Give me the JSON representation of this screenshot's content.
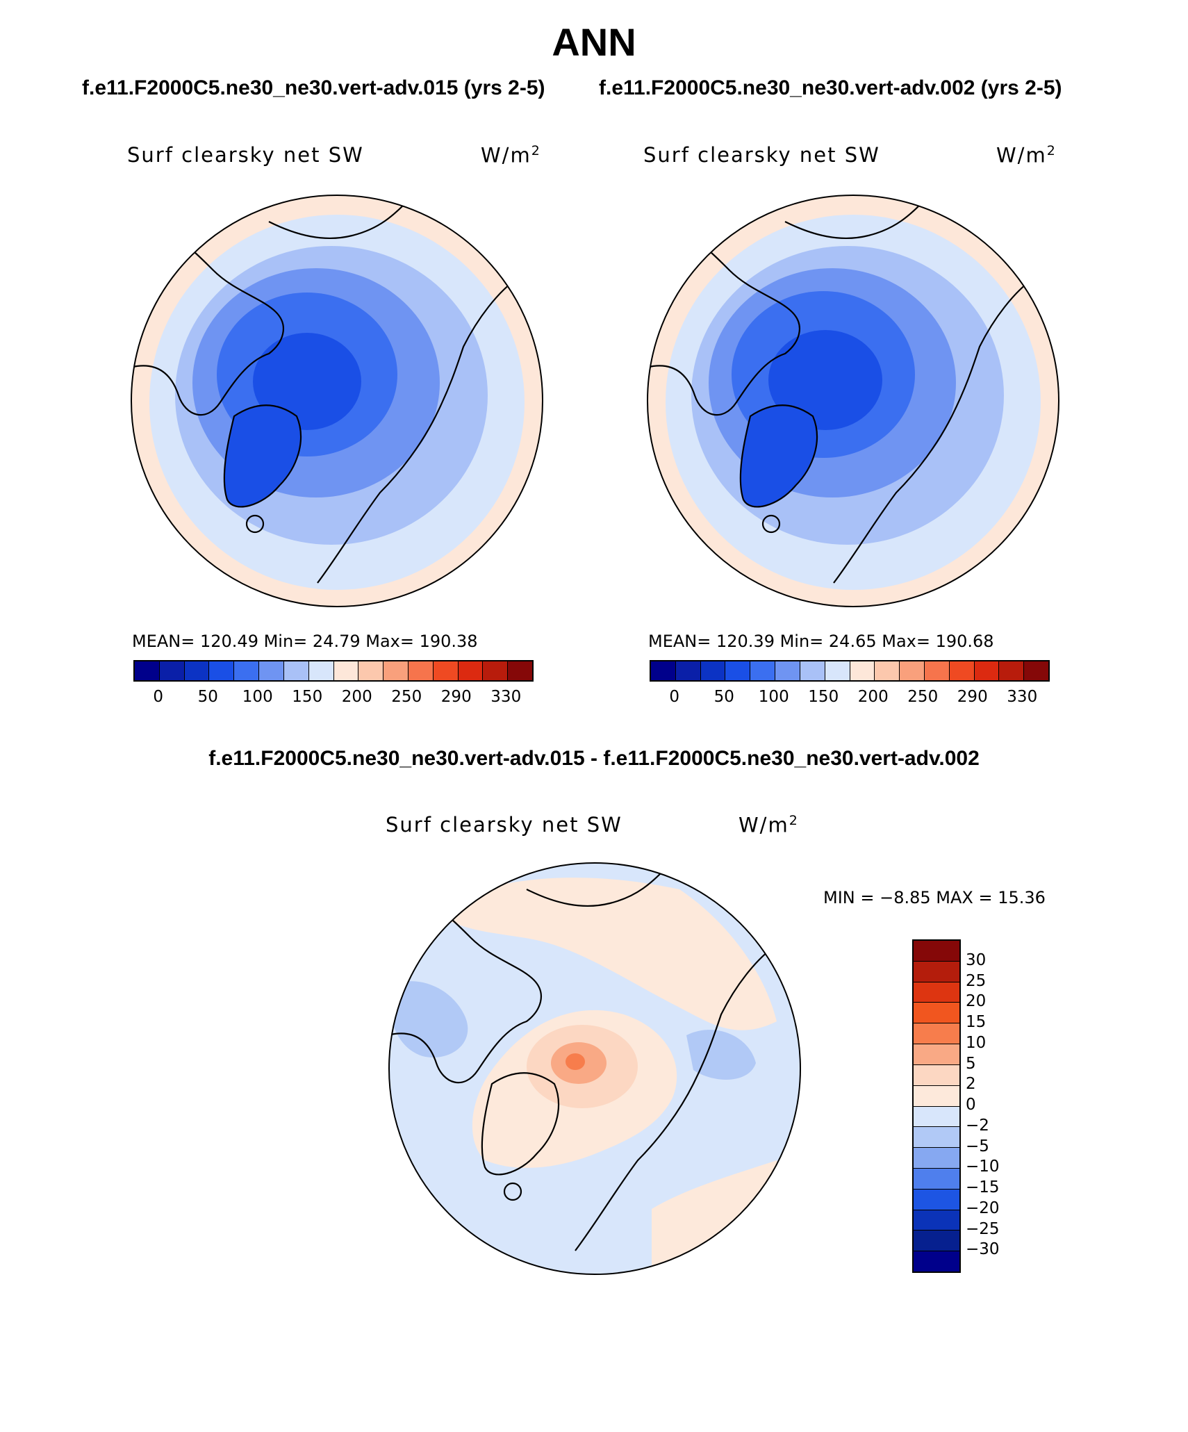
{
  "title": "ANN",
  "case_titles": [
    "f.e11.F2000C5.ne30_ne30.vert-adv.015 (yrs 2-5)",
    "f.e11.F2000C5.ne30_ne30.vert-adv.002 (yrs 2-5)"
  ],
  "diff_title": "f.e11.F2000C5.ne30_ne30.vert-adv.015 - f.e11.F2000C5.ne30_ne30.vert-adv.002",
  "panels": [
    {
      "variable": "Surf clearsky net SW",
      "units": "W/m",
      "units_sup": "2",
      "stats_text": "MEAN= 120.49  Min=   24.79  Max= 190.38",
      "mean": 120.49,
      "min": 24.79,
      "max": 190.38
    },
    {
      "variable": "Surf clearsky net SW",
      "units": "W/m",
      "units_sup": "2",
      "stats_text": "MEAN= 120.39  Min=   24.65  Max= 190.68",
      "mean": 120.39,
      "min": 24.65,
      "max": 190.68
    },
    {
      "variable": "Surf clearsky net SW",
      "units": "W/m",
      "units_sup": "2",
      "stats_text": "MIN =   −8.85  MAX =   15.36",
      "min": -8.85,
      "max": 15.36
    }
  ],
  "abs_colorbar": {
    "colors": [
      "#00008b",
      "#0a1fa8",
      "#0c33c4",
      "#1a4fe6",
      "#3b6ff0",
      "#6f94f2",
      "#a9c1f7",
      "#d8e6fb",
      "#fde7d9",
      "#fcc8ad",
      "#f9a07c",
      "#f6744c",
      "#ef4a22",
      "#dc2a10",
      "#b81c0c",
      "#850808"
    ],
    "tick_labels": [
      "0",
      "50",
      "100",
      "150",
      "200",
      "250",
      "290",
      "330"
    ]
  },
  "diff_colorbar": {
    "colors": [
      "#850808",
      "#b41d0c",
      "#dd3511",
      "#f1561f",
      "#f77d4c",
      "#f9a985",
      "#fcd7c2",
      "#fde9db",
      "#d8e6fb",
      "#b1c9f6",
      "#86a8f1",
      "#4f7fed",
      "#1d55e3",
      "#0b33b8",
      "#06208f",
      "#00008b"
    ],
    "tick_labels": [
      "30",
      "25",
      "20",
      "15",
      "10",
      "5",
      "2",
      "0",
      "−2",
      "−5",
      "−10",
      "−15",
      "−20",
      "−25",
      "−30"
    ]
  }
}
